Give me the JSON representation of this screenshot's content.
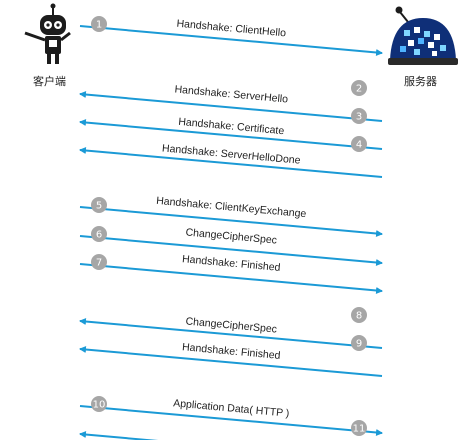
{
  "actors": {
    "client": "客户端",
    "server": "服务器"
  },
  "colors": {
    "arrow": "#1b9ad6",
    "badge": "#a6a6a6",
    "badge_text": "#ffffff",
    "label_text": "#222222",
    "client_body": "#1c1c1c",
    "server_dome": "#0f2f78"
  },
  "messages": [
    {
      "number": "1",
      "label": "Handshake: ClientHello",
      "direction": "client-to-server"
    },
    {
      "number": "2",
      "label": "Handshake: ServerHello",
      "direction": "server-to-client"
    },
    {
      "number": "3",
      "label": "Handshake: Certificate",
      "direction": "server-to-client"
    },
    {
      "number": "4",
      "label": "Handshake: ServerHelloDone",
      "direction": "server-to-client"
    },
    {
      "number": "5",
      "label": "Handshake: ClientKeyExchange",
      "direction": "client-to-server"
    },
    {
      "number": "6",
      "label": "ChangeCipherSpec",
      "direction": "client-to-server"
    },
    {
      "number": "7",
      "label": "Handshake: Finished",
      "direction": "client-to-server"
    },
    {
      "number": "8",
      "label": "ChangeCipherSpec",
      "direction": "server-to-client"
    },
    {
      "number": "9",
      "label": "Handshake: Finished",
      "direction": "server-to-client"
    },
    {
      "number": "10",
      "label": "Application Data( HTTP )",
      "direction": "client-to-server"
    },
    {
      "number": "11",
      "label": "",
      "direction": "server-to-client"
    }
  ]
}
